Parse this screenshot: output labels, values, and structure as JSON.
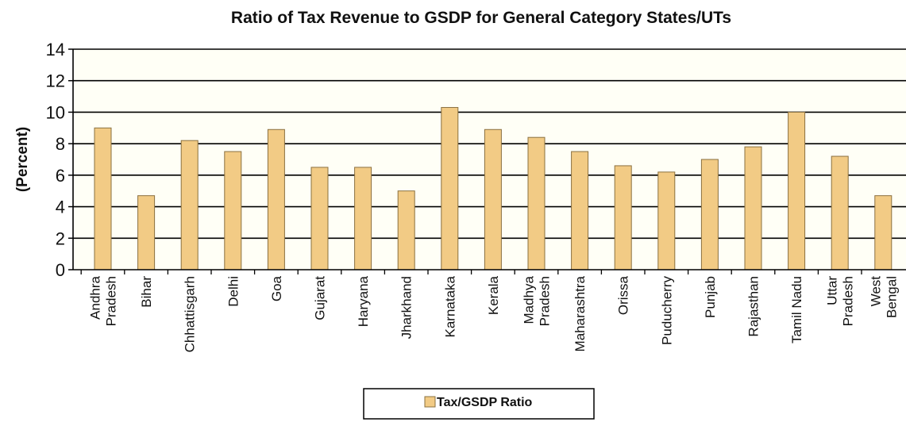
{
  "chart_data": {
    "type": "bar",
    "title": "Ratio of Tax Revenue to GSDP for General Category States/UTs",
    "xlabel": "",
    "ylabel": "(Percent)",
    "ylim": [
      0,
      14
    ],
    "yticks": [
      0,
      2,
      4,
      6,
      8,
      10,
      12,
      14
    ],
    "grid": true,
    "legend_position": "bottom",
    "categories": [
      [
        "Andhra",
        "Pradesh"
      ],
      [
        "Bihar"
      ],
      [
        "Chhattisgarh"
      ],
      [
        "Delhi"
      ],
      [
        "Goa"
      ],
      [
        "Gujarat"
      ],
      [
        "Haryana"
      ],
      [
        "Jharkhand"
      ],
      [
        "Karnataka"
      ],
      [
        "Kerala"
      ],
      [
        "Madhya",
        "Pradesh"
      ],
      [
        "Maharashtra"
      ],
      [
        "Orissa"
      ],
      [
        "Puducherry"
      ],
      [
        "Punjab"
      ],
      [
        "Rajasthan"
      ],
      [
        "Tamil Nadu"
      ],
      [
        "Uttar",
        "Pradesh"
      ],
      [
        "West",
        "Bengal"
      ]
    ],
    "series": [
      {
        "name": "Tax/GSDP Ratio",
        "color": "#F2CB85",
        "values": [
          9.0,
          4.7,
          8.2,
          7.5,
          8.9,
          6.5,
          6.5,
          5.0,
          10.3,
          8.9,
          8.4,
          7.5,
          6.6,
          6.2,
          7.0,
          7.8,
          10.0,
          7.2,
          4.7
        ]
      }
    ],
    "colors": {
      "bar_fill": "#F2CB85",
      "bar_stroke": "#8A7040",
      "plot_background": "#FFFFF6",
      "grid": "#000000",
      "axis": "#000000"
    }
  }
}
